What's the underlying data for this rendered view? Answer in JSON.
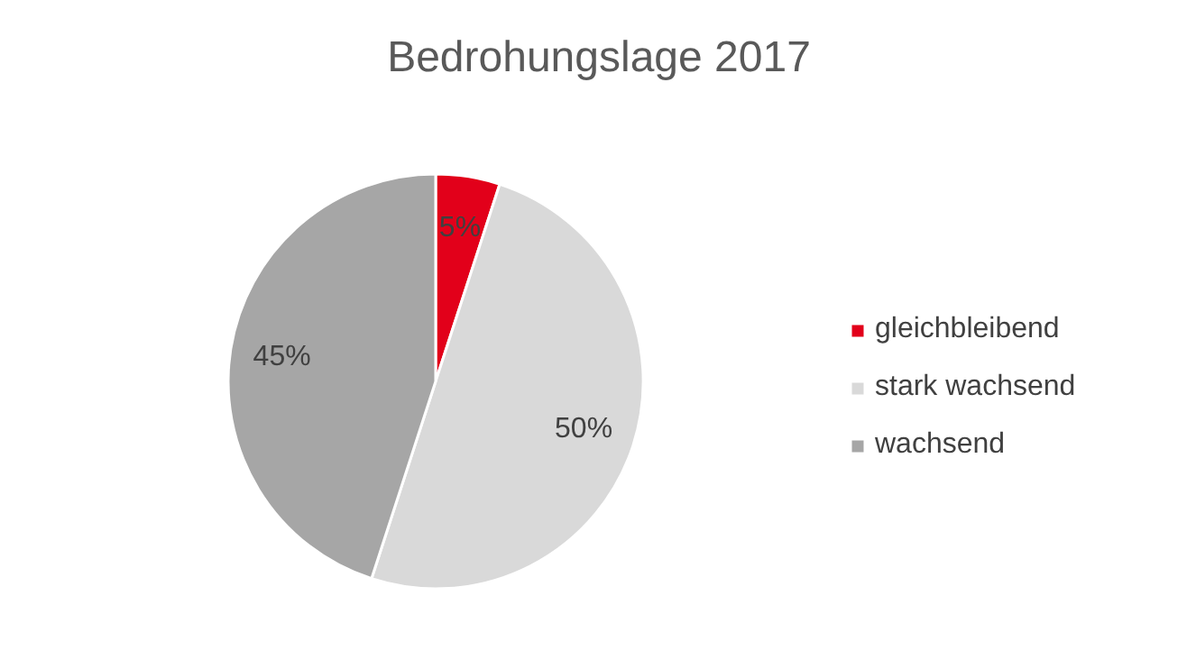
{
  "chart_data": {
    "type": "pie",
    "title": "Bedrohungslage 2017",
    "categories": [
      "gleichbleibend",
      "stark wachsend",
      "wachsend"
    ],
    "values": [
      5,
      50,
      45
    ],
    "colors": [
      "#e2001a",
      "#d9d9d9",
      "#a6a6a6"
    ],
    "value_labels": [
      "5%",
      "50%",
      "45%"
    ],
    "legend": "right"
  }
}
